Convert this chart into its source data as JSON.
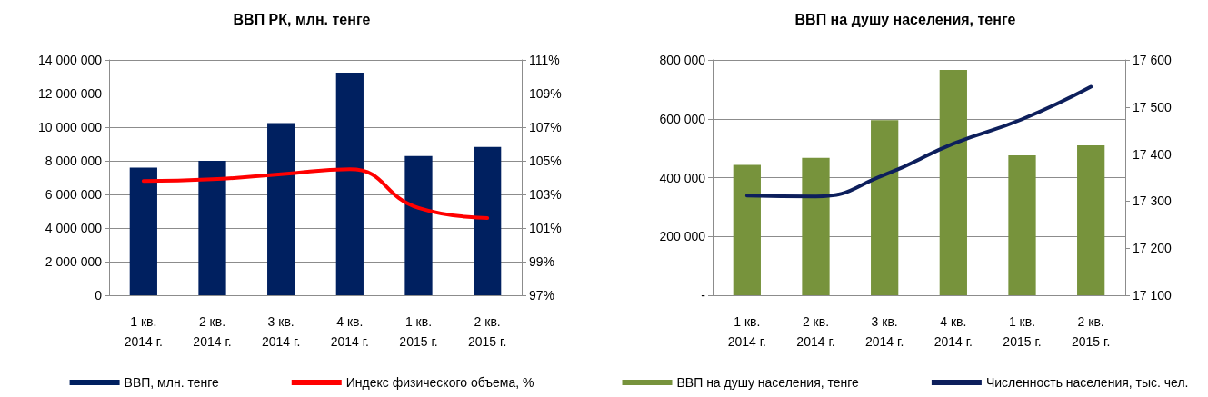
{
  "chart_data": [
    {
      "type": "bar",
      "title": "ВВП РК, млн. тенге",
      "categories": [
        "1 кв.\n2014 г.",
        "2 кв.\n2014 г.",
        "3 кв.\n2014 г.",
        "4 кв.\n2014 г.",
        "1 кв.\n2015 г.",
        "2 кв.\n2015 г."
      ],
      "series": [
        {
          "name": "ВВП, млн. тенге",
          "color": "#002060",
          "values": [
            7590000,
            8000000,
            10240000,
            13240000,
            8290000,
            8820000
          ]
        },
        {
          "name": "Индекс физического объема, %",
          "type": "line",
          "axis": "y2",
          "color": "#ff0000",
          "values": [
            103.8,
            103.9,
            104.2,
            104.5,
            102.2,
            101.6
          ]
        }
      ],
      "ylim": [
        0,
        14000000
      ],
      "yticks": [
        {
          "value": 0,
          "label": "0"
        },
        {
          "value": 2000000,
          "label": "2 000 000"
        },
        {
          "value": 4000000,
          "label": "4 000 000"
        },
        {
          "value": 6000000,
          "label": "6 000 000"
        },
        {
          "value": 8000000,
          "label": "8 000 000"
        },
        {
          "value": 10000000,
          "label": "10 000 000"
        },
        {
          "value": 12000000,
          "label": "12 000 000"
        },
        {
          "value": 14000000,
          "label": "14 000 000"
        }
      ],
      "y2lim": [
        97,
        111
      ],
      "y2ticks": [
        {
          "value": 97,
          "label": "97%"
        },
        {
          "value": 99,
          "label": "99%"
        },
        {
          "value": 101,
          "label": "101%"
        },
        {
          "value": 103,
          "label": "103%"
        },
        {
          "value": 105,
          "label": "105%"
        },
        {
          "value": 107,
          "label": "107%"
        },
        {
          "value": 109,
          "label": "109%"
        },
        {
          "value": 111,
          "label": "111%"
        }
      ],
      "grid": "y",
      "legend": "bottom",
      "marker": "none"
    },
    {
      "type": "bar",
      "title": "ВВП на душу населения, тенге",
      "categories": [
        "1 кв.\n2014 г.",
        "2 кв.\n2014 г.",
        "3 кв.\n2014 г.",
        "4 кв.\n2014 г.",
        "1 кв.\n2015 г.",
        "2 кв.\n2015 г."
      ],
      "series": [
        {
          "name": "ВВП на душу населения, тенге",
          "color": "#77933c",
          "values": [
            443000,
            467000,
            595000,
            766000,
            476000,
            510000
          ]
        },
        {
          "name": "Численность населения, тыс. чел.",
          "type": "line",
          "axis": "y2",
          "color": "#0d1f5c",
          "values": [
            17312,
            17310,
            17356,
            17422,
            17474,
            17543
          ]
        }
      ],
      "ylim": [
        0,
        800000
      ],
      "yticks": [
        {
          "value": 0,
          "label": "-"
        },
        {
          "value": 200000,
          "label": "200 000"
        },
        {
          "value": 400000,
          "label": "400 000"
        },
        {
          "value": 600000,
          "label": "600 000"
        },
        {
          "value": 800000,
          "label": "800 000"
        }
      ],
      "y2lim": [
        17100,
        17600
      ],
      "y2ticks": [
        {
          "value": 17100,
          "label": "17 100"
        },
        {
          "value": 17200,
          "label": "17 200"
        },
        {
          "value": 17300,
          "label": "17 300"
        },
        {
          "value": 17400,
          "label": "17 400"
        },
        {
          "value": 17500,
          "label": "17 500"
        },
        {
          "value": 17600,
          "label": "17 600"
        }
      ],
      "grid": "y",
      "legend": "bottom",
      "marker": "none"
    }
  ]
}
